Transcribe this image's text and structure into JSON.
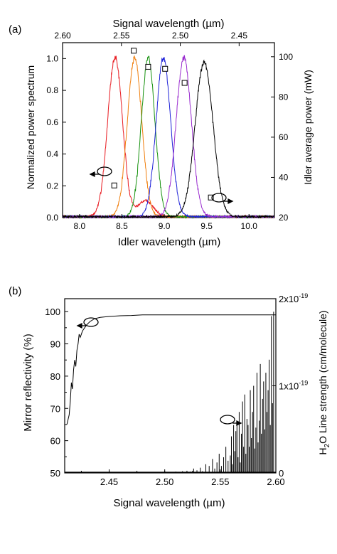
{
  "chart_data": [
    {
      "panel_label": "(a)",
      "type": "line",
      "title": "",
      "xlabel": "Idler wavelength (µm)",
      "ylabel": "Normalized power spectrum",
      "top_xlabel": "Signal wavelength (µm)",
      "right_ylabel": "Idler average power (mW)",
      "xlim": [
        7.8,
        10.3
      ],
      "ylim": [
        0.0,
        1.1
      ],
      "top_xlim": [
        2.6,
        2.42
      ],
      "right_ylim": [
        20,
        107
      ],
      "xticks": [
        "8.0",
        "8.5",
        "9.0",
        "9.5",
        "10.0"
      ],
      "yticks": [
        "0.0",
        "0.2",
        "0.4",
        "0.6",
        "0.8",
        "1.0"
      ],
      "top_xticks": [
        "2.60",
        "2.55",
        "2.50",
        "2.45"
      ],
      "right_yticks": [
        "20",
        "40",
        "60",
        "80",
        "100"
      ],
      "series": [
        {
          "color": "#e8191f",
          "center": 8.42,
          "width": 0.088,
          "peak": 1.0
        },
        {
          "color": "#f07f0e",
          "center": 8.65,
          "width": 0.085,
          "peak": 1.0
        },
        {
          "color": "#17920f",
          "center": 8.81,
          "width": 0.08,
          "peak": 1.0
        },
        {
          "color": "#1e22d8",
          "center": 8.99,
          "width": 0.085,
          "peak": 1.0
        },
        {
          "color": "#9a2ccf",
          "center": 9.23,
          "width": 0.09,
          "peak": 1.0
        },
        {
          "color": "#000000",
          "center": 9.47,
          "width": 0.105,
          "peak": 0.97
        }
      ],
      "power_markers": {
        "x": [
          8.41,
          8.64,
          8.81,
          9.01,
          9.24,
          9.55
        ],
        "y": [
          36,
          103,
          95,
          94,
          87,
          30
        ]
      }
    },
    {
      "panel_label": "(b)",
      "type": "line",
      "title": "",
      "xlabel": "Signal wavelength (µm)",
      "ylabel": "Mirror reflectivity (%)",
      "right_ylabel_main": "H",
      "right_ylabel_sub": "2",
      "right_ylabel_rest": "O Line strength (cm/molecule)",
      "xlim": [
        2.41,
        2.6
      ],
      "ylim": [
        50,
        104
      ],
      "right_ylim": [
        0,
        2e-19
      ],
      "xticks": [
        "2.45",
        "2.50",
        "2.55",
        "2.60"
      ],
      "yticks": [
        "50",
        "60",
        "70",
        "80",
        "90",
        "100"
      ],
      "right_ticks": [
        {
          "mantissa": "0",
          "exp": ""
        },
        {
          "mantissa": "1x10",
          "exp": "-19"
        },
        {
          "mantissa": "2x10",
          "exp": "-19"
        }
      ],
      "reflectivity": {
        "x": [
          2.412,
          2.414,
          2.415,
          2.416,
          2.417,
          2.418,
          2.419,
          2.42,
          2.421,
          2.422,
          2.423,
          2.424,
          2.426,
          2.428,
          2.43,
          2.433,
          2.437,
          2.442,
          2.45,
          2.46,
          2.47,
          2.48,
          2.5,
          2.52,
          2.54,
          2.56,
          2.58,
          2.6
        ],
        "y": [
          65,
          68,
          72,
          78,
          76,
          82,
          85,
          83,
          88,
          90,
          93,
          92,
          94,
          95,
          96,
          97,
          97.8,
          98.2,
          98.5,
          98.7,
          98.8,
          99,
          99,
          99,
          99,
          99,
          99,
          99
        ]
      },
      "water_lines": {
        "x": [
          2.506,
          2.51,
          2.513,
          2.516,
          2.52,
          2.523,
          2.526,
          2.529,
          2.532,
          2.534,
          2.537,
          2.54,
          2.543,
          2.545,
          2.547,
          2.549,
          2.551,
          2.553,
          2.555,
          2.557,
          2.559,
          2.56,
          2.561,
          2.562,
          2.563,
          2.564,
          2.565,
          2.566,
          2.567,
          2.568,
          2.569,
          2.57,
          2.571,
          2.572,
          2.573,
          2.574,
          2.575,
          2.576,
          2.577,
          2.578,
          2.579,
          2.58,
          2.581,
          2.582,
          2.583,
          2.584,
          2.585,
          2.586,
          2.587,
          2.588,
          2.589,
          2.59,
          2.591,
          2.592,
          2.593,
          2.594,
          2.595,
          2.596,
          2.597,
          2.598
        ],
        "y": [
          0.01,
          0.015,
          0.01,
          0.02,
          0.025,
          0.015,
          0.05,
          0.03,
          0.06,
          0.02,
          0.1,
          0.08,
          0.16,
          0.05,
          0.12,
          0.22,
          0.08,
          0.18,
          0.3,
          0.14,
          0.2,
          0.42,
          0.1,
          0.55,
          0.25,
          0.48,
          0.6,
          0.18,
          0.7,
          0.12,
          0.45,
          0.82,
          0.3,
          0.9,
          0.22,
          0.62,
          0.55,
          0.3,
          0.95,
          0.4,
          0.7,
          1.0,
          0.28,
          0.52,
          1.15,
          0.35,
          0.6,
          1.25,
          0.45,
          0.85,
          1.05,
          0.5,
          1.15,
          0.7,
          0.95,
          1.3,
          0.55,
          1.8,
          0.8,
          1.85
        ]
      }
    }
  ]
}
